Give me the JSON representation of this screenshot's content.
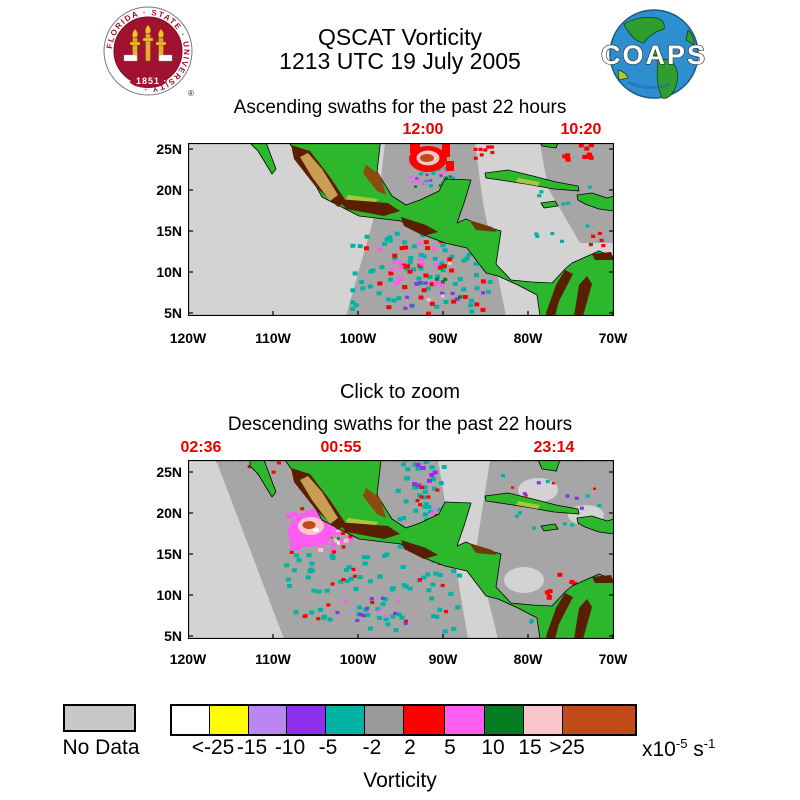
{
  "header": {
    "title_line1": "QSCAT Vorticity",
    "title_line2": "1213 UTC 19 July 2005",
    "fsu_seal": {
      "ring_text": "FLORIDA · STATE · UNIVERSITY ·",
      "year": "· 1851 ·",
      "registered_mark": "®"
    },
    "coaps": {
      "label": "COAPS"
    }
  },
  "ascending": {
    "heading": "Ascending swaths for the past 22 hours",
    "swath_times": [
      {
        "label": "12:00"
      },
      {
        "label": "10:20"
      }
    ],
    "lat_labels": [
      "25N",
      "20N",
      "15N",
      "10N",
      "5N"
    ],
    "lon_labels": [
      "120W",
      "110W",
      "100W",
      "90W",
      "80W",
      "70W"
    ]
  },
  "click_to_zoom": "Click to zoom",
  "descending": {
    "heading": "Descending swaths for the past 22 hours",
    "swath_times": [
      {
        "label": "02:36"
      },
      {
        "label": "00:55"
      },
      {
        "label": "23:14"
      }
    ],
    "lat_labels": [
      "25N",
      "20N",
      "15N",
      "10N",
      "5N"
    ],
    "lon_labels": [
      "120W",
      "110W",
      "100W",
      "90W",
      "80W",
      "70W"
    ]
  },
  "legend": {
    "no_data_label": "No Data",
    "no_data_color": "#c8c8c8",
    "segment_colors": [
      "#ffffff",
      "#ffff00",
      "#bb86f2",
      "#8d30ee",
      "#00b3a4",
      "#999999",
      "#fe0000",
      "#ff5cf0",
      "#077d21",
      "#f9c6c9",
      "#c04a18"
    ],
    "tick_labels": [
      "<-25",
      "-15",
      "-10",
      "-5",
      "-2",
      "2",
      "5",
      "10",
      "15",
      ">25"
    ],
    "units": {
      "mantissa": "x10",
      "exponent": "-5",
      "unit": "s",
      "unit_exponent": "-1"
    },
    "axis_label": "Vorticity"
  },
  "colors": {
    "time_label_red": "#e60000",
    "map_no_data": "#d3d3d3",
    "map_swath_gray": "#a6a6a6",
    "land_green": "#2db72d"
  }
}
